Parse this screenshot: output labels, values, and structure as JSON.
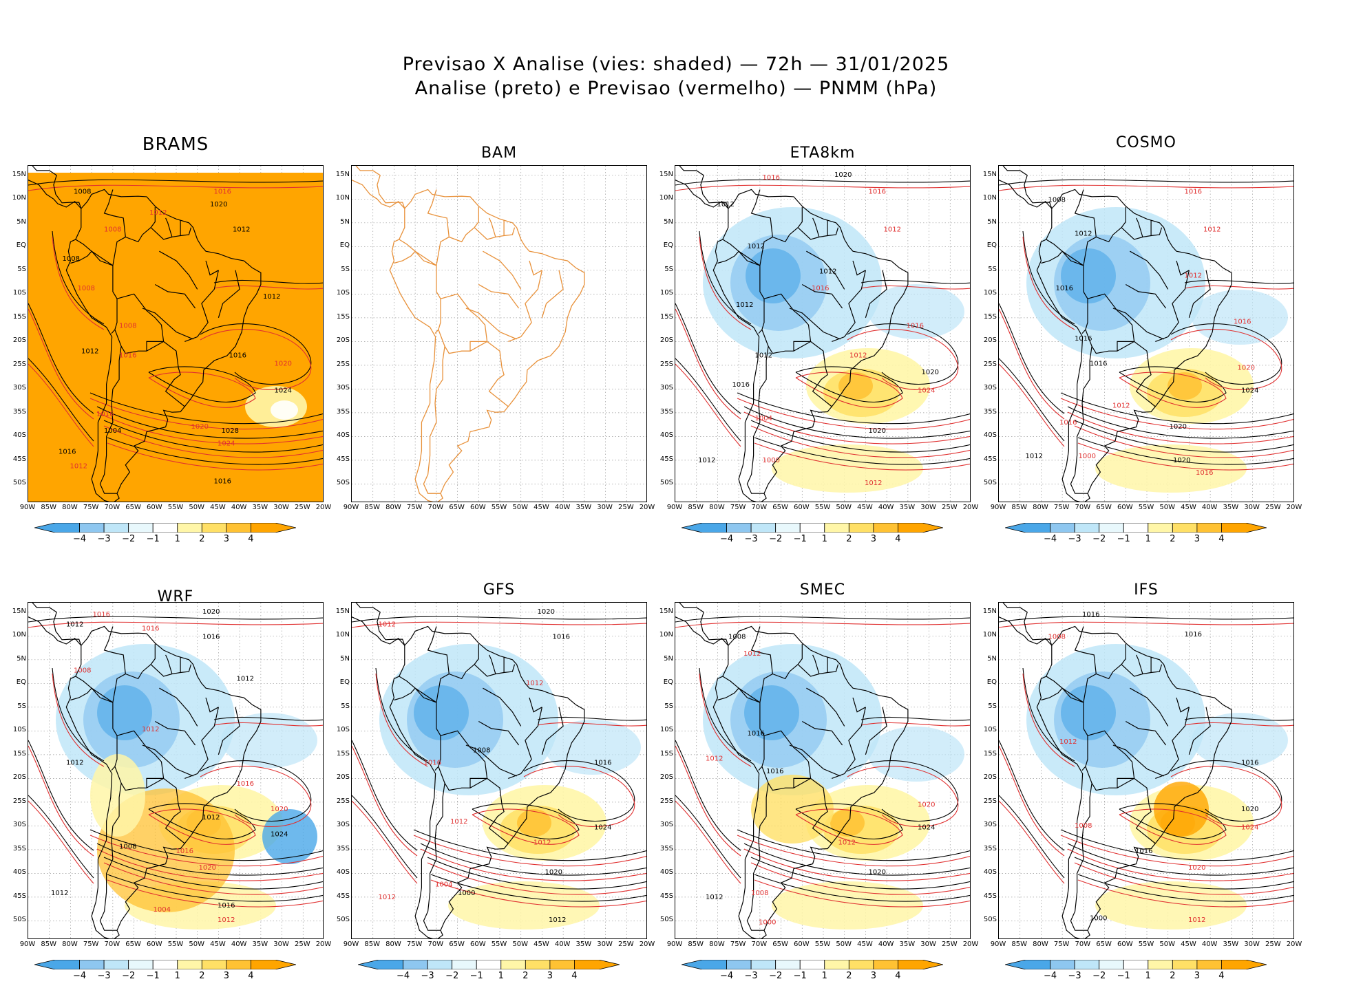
{
  "title": {
    "line1": "Previsao X Analise (vies: shaded) — 72h — 31/01/2025",
    "line2": "Analise (preto) e Previsao (vermelho) — PNMM (hPa)"
  },
  "axes": {
    "lat_labels": [
      "15N",
      "10N",
      "5N",
      "EQ",
      "5S",
      "10S",
      "15S",
      "20S",
      "25S",
      "30S",
      "35S",
      "40S",
      "45S",
      "50S"
    ],
    "lon_labels": [
      "90W",
      "85W",
      "80W",
      "75W",
      "70W",
      "65W",
      "60W",
      "55W",
      "50W",
      "45W",
      "40W",
      "35W",
      "30W",
      "25W",
      "20W"
    ]
  },
  "colorbar": {
    "labels": [
      "−4",
      "−3",
      "−2",
      "−1",
      "1",
      "2",
      "3",
      "4"
    ],
    "colors": [
      "#4aa7e8",
      "#8ec7f0",
      "#bfe6f8",
      "#e8f8fc",
      "#ffffff",
      "#fff6a8",
      "#ffe066",
      "#ffc233",
      "#ffa500"
    ]
  },
  "colors": {
    "analysis": "#000000",
    "forecast": "#e03030",
    "coast": "#000000",
    "bam_coast": "#e8913a"
  },
  "panels": [
    {
      "name": "BRAMS",
      "kind": "brams",
      "colorbar": true,
      "labels": [
        [
          "1008",
          60,
          25
        ],
        [
          "1016",
          245,
          25
        ],
        [
          "1020",
          240,
          40
        ],
        [
          "1012",
          160,
          50
        ],
        [
          "1012",
          270,
          70
        ],
        [
          "1008",
          100,
          70
        ],
        [
          "1008",
          45,
          105
        ],
        [
          "1008",
          65,
          140
        ],
        [
          "1012",
          310,
          150
        ],
        [
          "1008",
          120,
          185
        ],
        [
          "1012",
          70,
          215
        ],
        [
          "1016",
          120,
          220
        ],
        [
          "1016",
          265,
          220
        ],
        [
          "1020",
          325,
          230
        ],
        [
          "1024",
          325,
          262
        ],
        [
          "1016",
          90,
          290
        ],
        [
          "1004",
          100,
          310
        ],
        [
          "1020",
          215,
          305
        ],
        [
          "1028",
          255,
          310
        ],
        [
          "1024",
          250,
          325
        ],
        [
          "1016",
          40,
          335
        ],
        [
          "1012",
          55,
          352
        ],
        [
          "1016",
          245,
          370
        ]
      ]
    },
    {
      "name": "BAM",
      "kind": "bam",
      "colorbar": false,
      "labels": []
    },
    {
      "name": "ETA8km",
      "kind": "bias",
      "colorbar": true,
      "labels": [
        [
          "1020",
          210,
          5
        ],
        [
          "1016",
          115,
          8
        ],
        [
          "1012",
          55,
          40
        ],
        [
          "1016",
          255,
          25
        ],
        [
          "1012",
          95,
          90
        ],
        [
          "1012",
          275,
          70
        ],
        [
          "1012",
          190,
          120
        ],
        [
          "1016",
          180,
          140
        ],
        [
          "1012",
          80,
          160
        ],
        [
          "1016",
          305,
          185
        ],
        [
          "1012",
          105,
          220
        ],
        [
          "1012",
          230,
          220
        ],
        [
          "1020",
          325,
          240
        ],
        [
          "1024",
          320,
          262
        ],
        [
          "1016",
          75,
          255
        ],
        [
          "1004",
          105,
          295
        ],
        [
          "1020",
          255,
          310
        ],
        [
          "1000",
          115,
          345
        ],
        [
          "1012",
          30,
          345
        ],
        [
          "1012",
          250,
          372
        ]
      ]
    },
    {
      "name": "COSMO",
      "kind": "bias",
      "colorbar": true,
      "labels": [
        [
          "1008",
          65,
          35
        ],
        [
          "1016",
          245,
          25
        ],
        [
          "1012",
          100,
          75
        ],
        [
          "1012",
          270,
          70
        ],
        [
          "1016",
          75,
          140
        ],
        [
          "1012",
          245,
          125
        ],
        [
          "1016",
          100,
          200
        ],
        [
          "1016",
          310,
          180
        ],
        [
          "1016",
          120,
          230
        ],
        [
          "1020",
          315,
          235
        ],
        [
          "1024",
          320,
          262
        ],
        [
          "1012",
          150,
          280
        ],
        [
          "1020",
          225,
          305
        ],
        [
          "1016",
          80,
          300
        ],
        [
          "1012",
          35,
          340
        ],
        [
          "1000",
          105,
          340
        ],
        [
          "1020",
          230,
          345
        ],
        [
          "1016",
          260,
          360
        ]
      ]
    },
    {
      "name": "WRF",
      "kind": "bias",
      "colorbar": true,
      "labels": [
        [
          "1020",
          230,
          5
        ],
        [
          "1016",
          85,
          8
        ],
        [
          "1012",
          50,
          20
        ],
        [
          "1016",
          150,
          25
        ],
        [
          "1016",
          230,
          35
        ],
        [
          "1008",
          60,
          75
        ],
        [
          "1012",
          275,
          85
        ],
        [
          "1012",
          150,
          145
        ],
        [
          "1012",
          50,
          185
        ],
        [
          "1016",
          275,
          210
        ],
        [
          "1012",
          230,
          250
        ],
        [
          "1020",
          320,
          240
        ],
        [
          "1024",
          320,
          270
        ],
        [
          "1016",
          195,
          290
        ],
        [
          "1008",
          120,
          285
        ],
        [
          "1020",
          225,
          310
        ],
        [
          "1012",
          30,
          340
        ],
        [
          "1004",
          165,
          360
        ],
        [
          "1016",
          250,
          355
        ],
        [
          "1012",
          250,
          372
        ]
      ]
    },
    {
      "name": "GFS",
      "kind": "bias",
      "colorbar": true,
      "labels": [
        [
          "1020",
          245,
          5
        ],
        [
          "1012",
          35,
          20
        ],
        [
          "1016",
          265,
          35
        ],
        [
          "1012",
          230,
          90
        ],
        [
          "1008",
          160,
          170
        ],
        [
          "1016",
          95,
          185
        ],
        [
          "1016",
          320,
          185
        ],
        [
          "1012",
          130,
          255
        ],
        [
          "1024",
          320,
          262
        ],
        [
          "1012",
          240,
          280
        ],
        [
          "1020",
          255,
          315
        ],
        [
          "1004",
          110,
          330
        ],
        [
          "1000",
          140,
          340
        ],
        [
          "1012",
          35,
          345
        ],
        [
          "1012",
          260,
          372
        ]
      ]
    },
    {
      "name": "SMEC",
      "kind": "bias",
      "colorbar": true,
      "labels": [
        [
          "1008",
          70,
          35
        ],
        [
          "1012",
          90,
          55
        ],
        [
          "1016",
          95,
          150
        ],
        [
          "1012",
          40,
          180
        ],
        [
          "1016",
          120,
          195
        ],
        [
          "1020",
          320,
          235
        ],
        [
          "1024",
          320,
          262
        ],
        [
          "1012",
          215,
          280
        ],
        [
          "1020",
          255,
          315
        ],
        [
          "1008",
          100,
          340
        ],
        [
          "1012",
          40,
          345
        ],
        [
          "1000",
          110,
          375
        ]
      ]
    },
    {
      "name": "IFS",
      "kind": "bias",
      "colorbar": true,
      "labels": [
        [
          "1016",
          110,
          8
        ],
        [
          "1008",
          65,
          35
        ],
        [
          "1016",
          245,
          32
        ],
        [
          "1012",
          80,
          160
        ],
        [
          "1016",
          320,
          185
        ],
        [
          "1008",
          100,
          260
        ],
        [
          "1020",
          320,
          240
        ],
        [
          "1024",
          320,
          262
        ],
        [
          "1016",
          180,
          290
        ],
        [
          "1020",
          250,
          310
        ],
        [
          "1000",
          120,
          370
        ],
        [
          "1012",
          250,
          372
        ]
      ]
    }
  ]
}
